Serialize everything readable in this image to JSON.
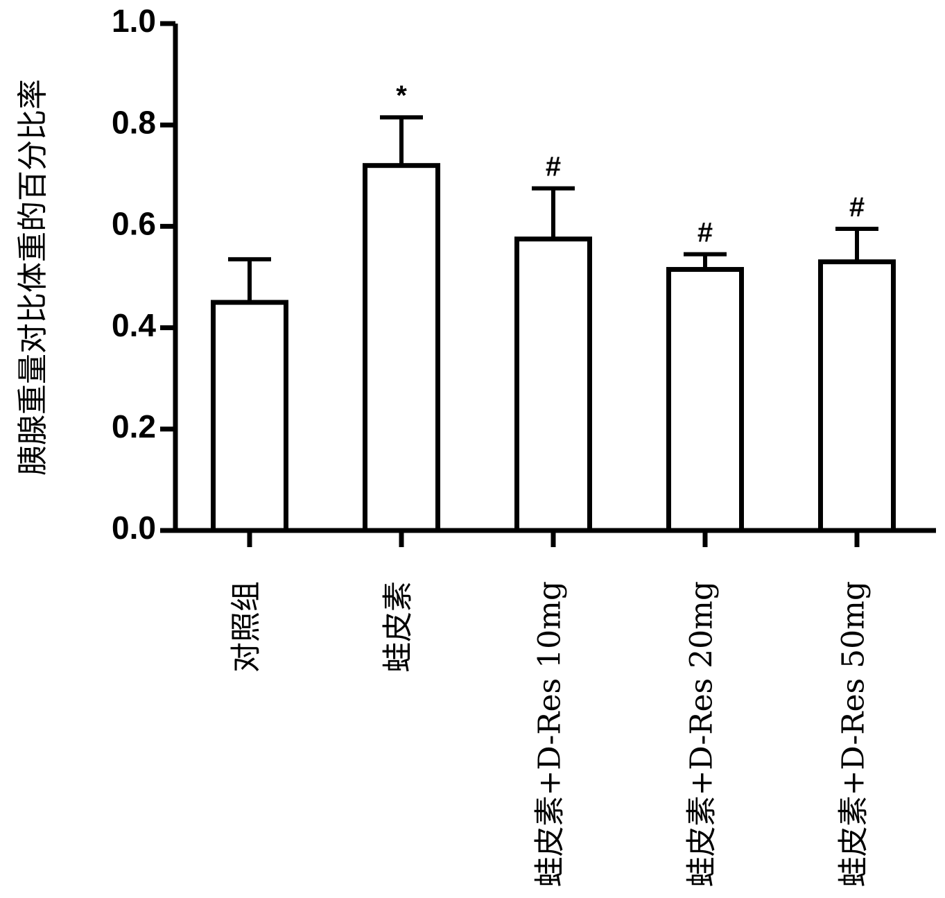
{
  "chart_data": {
    "type": "bar",
    "title": "",
    "xlabel": "",
    "ylabel": "胰腺重量对比体重的百分比率",
    "ylim": [
      0,
      1.0
    ],
    "yticks": [
      "0.0",
      "0.2",
      "0.4",
      "0.6",
      "0.8",
      "1.0"
    ],
    "grid": false,
    "legend": "none",
    "categories": [
      "对照组",
      "蛙皮素",
      "蛙皮素+D-Res 10mg",
      "蛙皮素+D-Res 20mg",
      "蛙皮素+D-Res 50mg"
    ],
    "values": [
      0.45,
      0.72,
      0.575,
      0.515,
      0.53
    ],
    "error": [
      0.085,
      0.095,
      0.1,
      0.03,
      0.065
    ],
    "significance": [
      "",
      "*",
      "#",
      "#",
      "#"
    ],
    "colors": {
      "bar_fill": "#ffffff",
      "stroke": "#000000"
    }
  }
}
